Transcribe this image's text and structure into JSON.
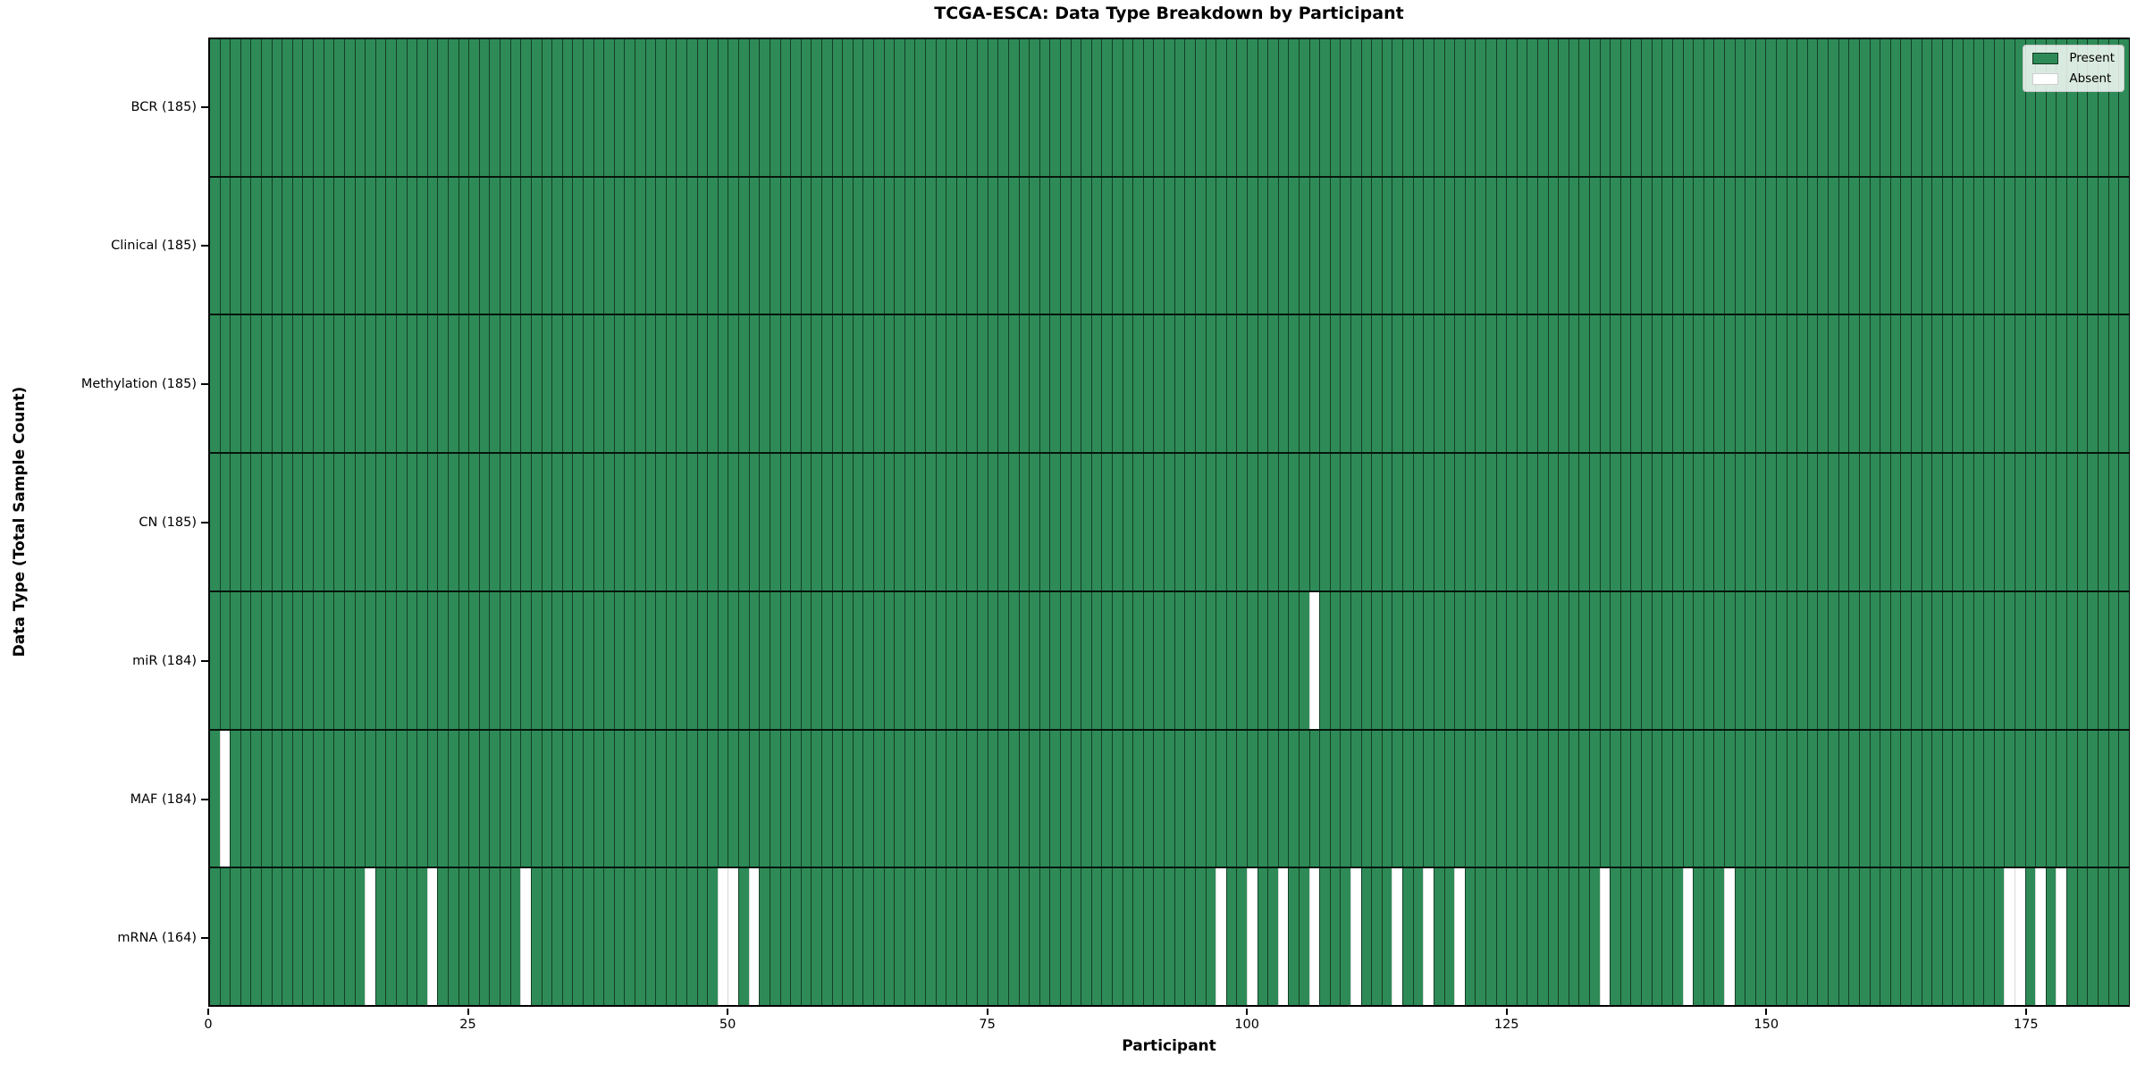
{
  "title": "TCGA-ESCA: Data Type Breakdown by Participant",
  "x_axis": {
    "label": "Participant",
    "tick_labels": [
      "0",
      "25",
      "50",
      "75",
      "100",
      "125",
      "150",
      "175"
    ]
  },
  "y_axis": {
    "label": "Data Type (Total Sample Count)"
  },
  "legend": {
    "present_label": "Present",
    "absent_label": "Absent"
  },
  "colors": {
    "present": "#2e8b57",
    "absent": "#ffffff"
  },
  "chart_data": {
    "type": "heatmap",
    "title": "TCGA-ESCA: Data Type Breakdown by Participant",
    "xlabel": "Participant",
    "ylabel": "Data Type (Total Sample Count)",
    "n_participants": 185,
    "x_ticks": [
      0,
      25,
      50,
      75,
      100,
      125,
      150,
      175
    ],
    "value_encoding": {
      "present": 1,
      "absent": 0
    },
    "legend": [
      {
        "label": "Present",
        "color": "#2e8b57"
      },
      {
        "label": "Absent",
        "color": "#ffffff"
      }
    ],
    "rows": [
      {
        "label": "BCR (185)",
        "data_type": "BCR",
        "total_samples": 185,
        "absent_participants": []
      },
      {
        "label": "Clinical (185)",
        "data_type": "Clinical",
        "total_samples": 185,
        "absent_participants": []
      },
      {
        "label": "Methylation (185)",
        "data_type": "Methylation",
        "total_samples": 185,
        "absent_participants": []
      },
      {
        "label": "CN (185)",
        "data_type": "CN",
        "total_samples": 185,
        "absent_participants": []
      },
      {
        "label": "miR (184)",
        "data_type": "miR",
        "total_samples": 184,
        "absent_participants": [
          106
        ]
      },
      {
        "label": "MAF (184)",
        "data_type": "MAF",
        "total_samples": 184,
        "absent_participants": [
          1
        ]
      },
      {
        "label": "mRNA (164)",
        "data_type": "mRNA",
        "total_samples": 164,
        "absent_participants": [
          15,
          21,
          30,
          49,
          50,
          52,
          97,
          100,
          103,
          106,
          110,
          114,
          117,
          120,
          134,
          142,
          146,
          173,
          174,
          176,
          178
        ]
      }
    ]
  }
}
